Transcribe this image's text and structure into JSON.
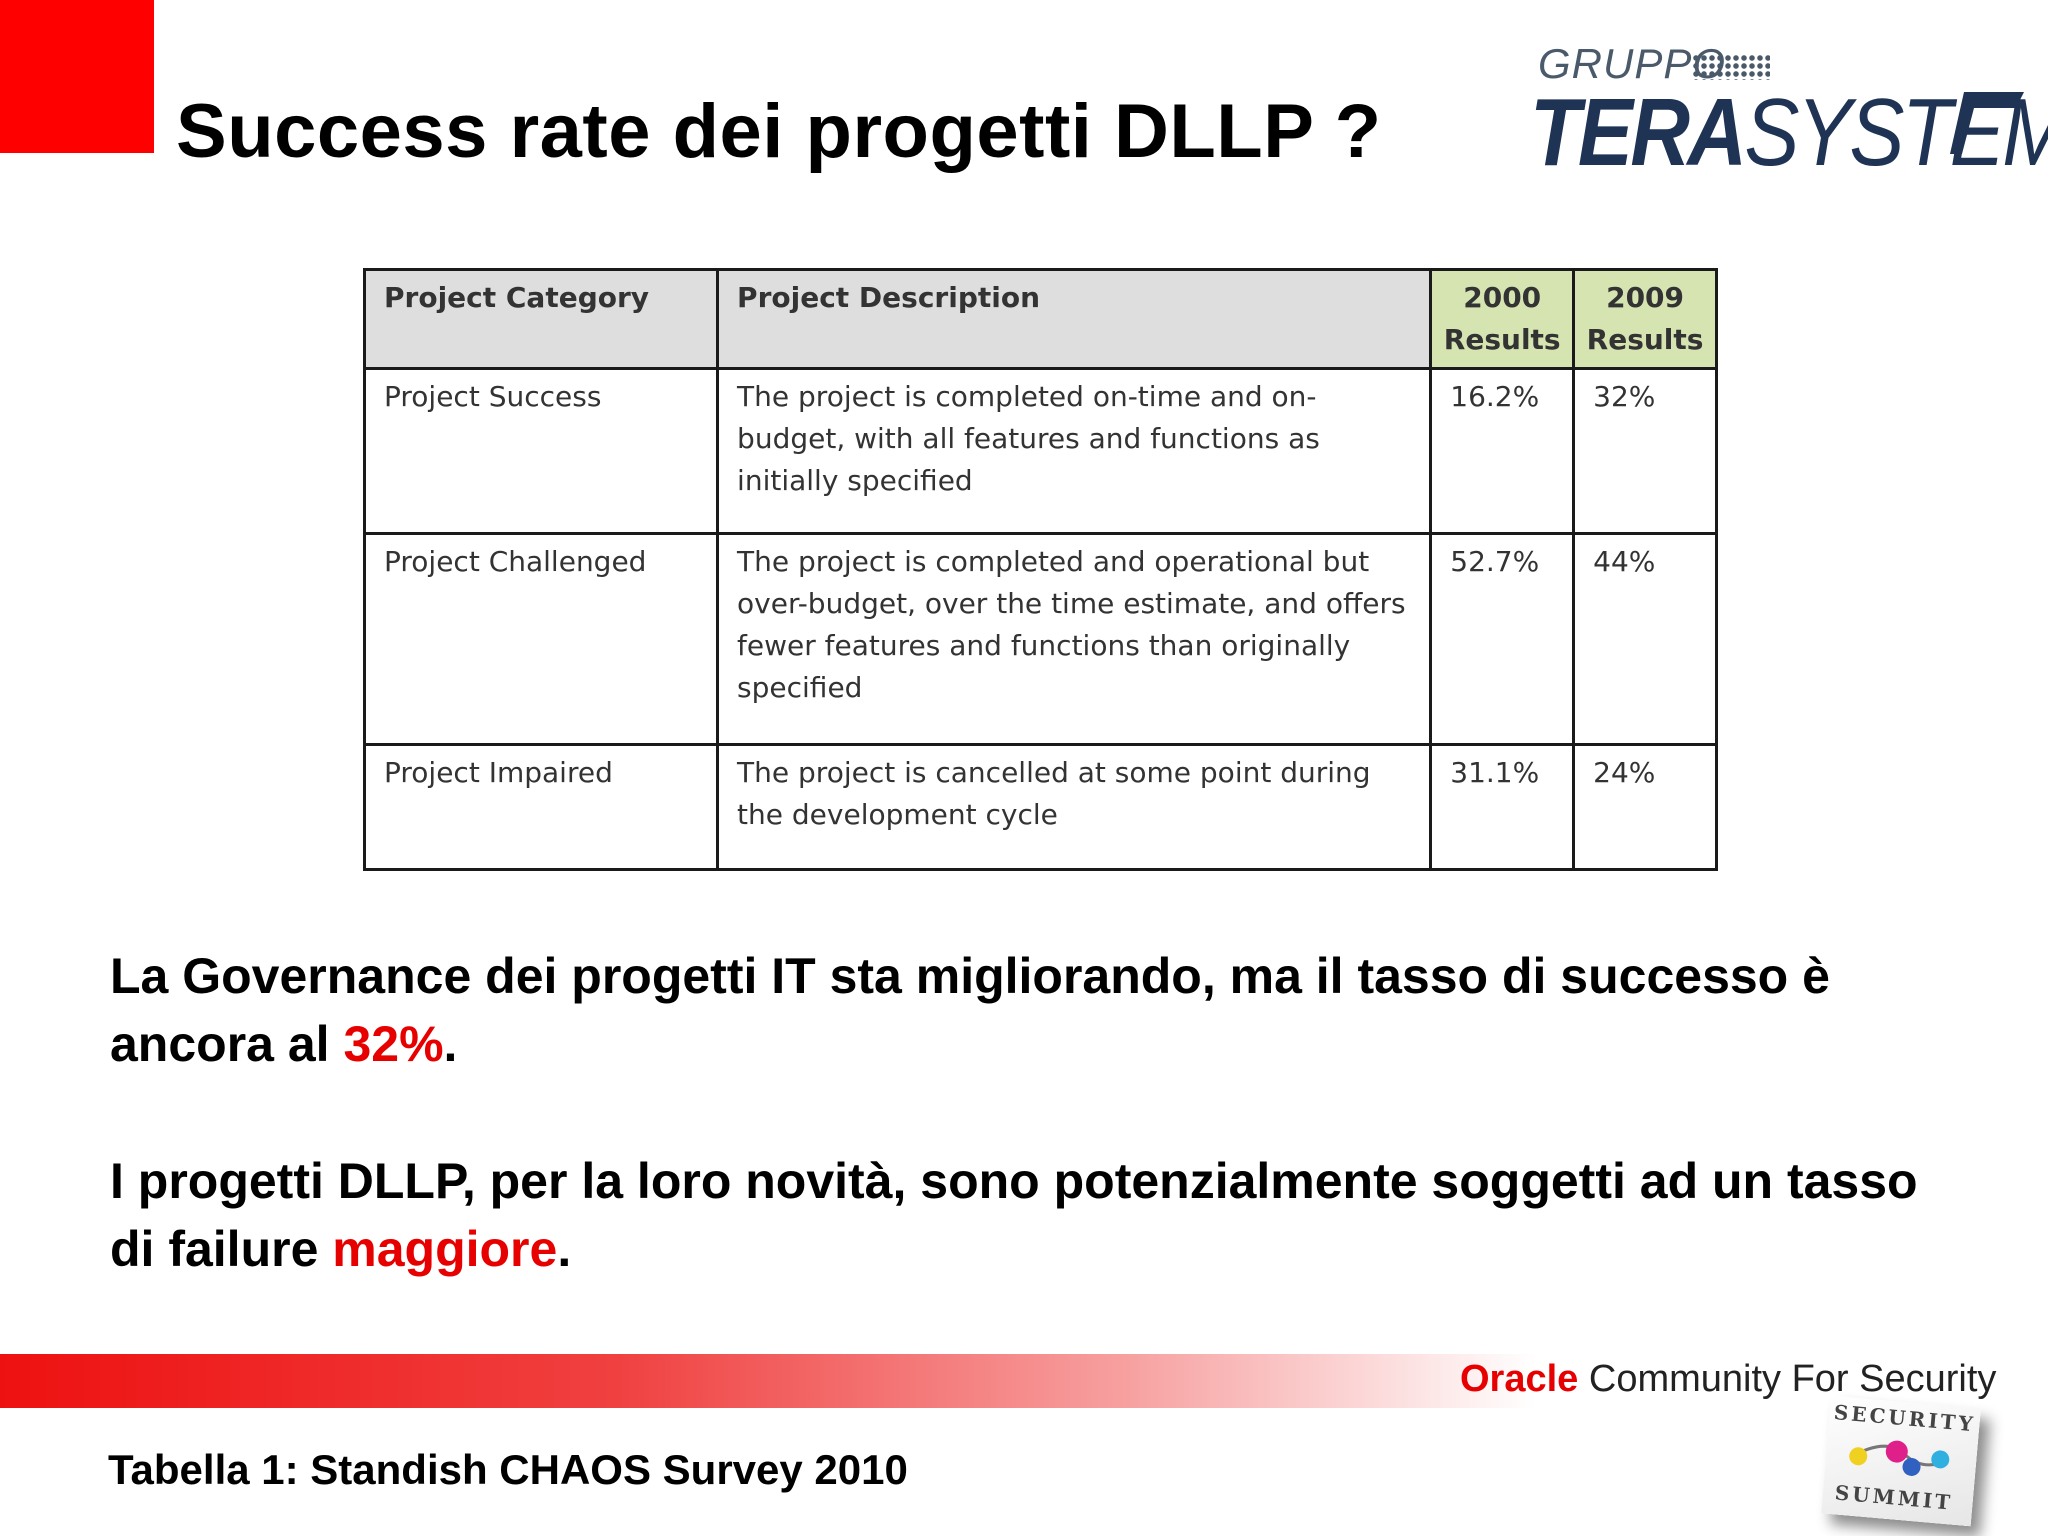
{
  "slide": {
    "title": "Success rate dei progetti DLLP ?"
  },
  "logo": {
    "small": "GRUPPO",
    "big_bold": "TERA",
    "big_thin": "SYSTEM",
    "icon": "terasystem-mark-icon"
  },
  "table": {
    "headers": {
      "category": "Project Category",
      "description": "Project Description",
      "y2000": "2000 Results",
      "y2009": "2009 Results"
    },
    "rows": [
      {
        "category": "Project Success",
        "description": "The project is completed on-time and on-budget, with all features and functions as initially specified",
        "y2000": "16.2%",
        "y2009": "32%"
      },
      {
        "category": "Project Challenged",
        "description": "The project is completed and operational but over-budget, over the time estimate, and offers fewer features and functions than originally specified",
        "y2000": "52.7%",
        "y2009": "44%"
      },
      {
        "category": "Project Impaired",
        "description": "The project is cancelled at some point during the development cycle",
        "y2000": "31.1%",
        "y2009": "24%"
      }
    ]
  },
  "paragraph1": {
    "text_a": "La Governance dei progetti IT sta migliorando, ma il tasso di successo è ancora al ",
    "highlight": "32%",
    "text_b": "."
  },
  "paragraph2": {
    "text_a": "I progetti DLLP, per la loro novità, sono potenzialmente soggetti ad un tasso di failure ",
    "highlight": "maggiore",
    "text_b": "."
  },
  "footer": {
    "oracle": "Oracle",
    "community": " Community For Security",
    "caption": "Tabella 1: Standish CHAOS Survey 2010",
    "summit_top": "SECURITY",
    "summit_bottom": "SUMMIT",
    "summit_icon": "security-summit-logo-icon"
  },
  "colors": {
    "accent_red": "#e60000",
    "header_gray": "#dedede",
    "header_green": "#d6e4b2",
    "logo_blue": "#1f3355"
  }
}
